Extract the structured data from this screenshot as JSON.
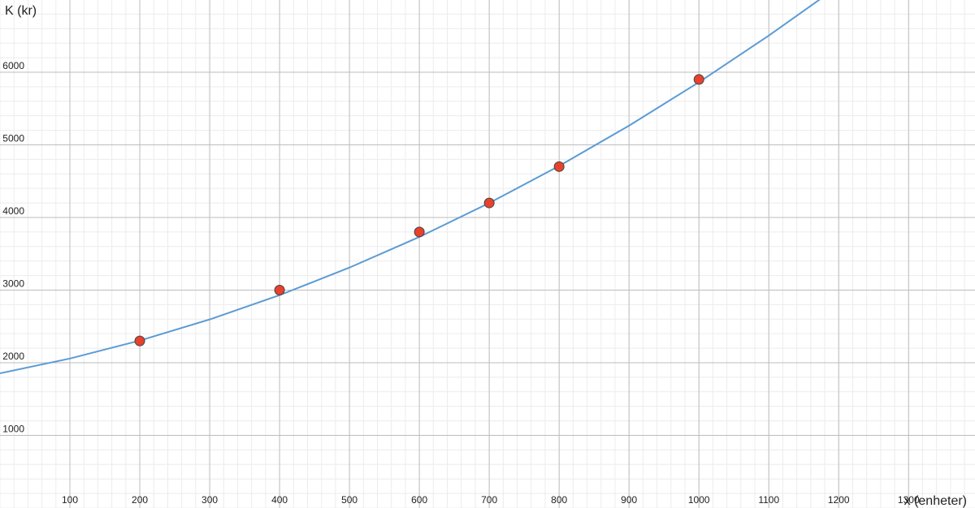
{
  "chart_data": {
    "type": "scatter",
    "x_label": "x (enheter)",
    "y_label": "K (kr)",
    "xlim": [
      0,
      1395
    ],
    "ylim": [
      0,
      6994
    ],
    "xticks": [
      100,
      200,
      300,
      400,
      500,
      600,
      700,
      800,
      900,
      1000,
      1100,
      1200,
      1300
    ],
    "yticks": [
      1000,
      2000,
      3000,
      4000,
      5000,
      6000
    ],
    "grid": true,
    "series": [
      {
        "type": "line",
        "color": "#5b9bd5",
        "x": [
          0,
          100,
          200,
          300,
          400,
          500,
          600,
          700,
          800,
          900,
          1000,
          1100,
          1180
        ],
        "values": [
          1855,
          2058,
          2305,
          2596,
          2930,
          3310,
          3732,
          4199,
          4709,
          5264,
          5862,
          6504,
          7050
        ]
      },
      {
        "type": "scatter",
        "color": "#e8412c",
        "x": [
          200,
          400,
          600,
          700,
          800,
          1000
        ],
        "values": [
          2300,
          3000,
          3800,
          4200,
          4700,
          5900
        ]
      }
    ]
  }
}
